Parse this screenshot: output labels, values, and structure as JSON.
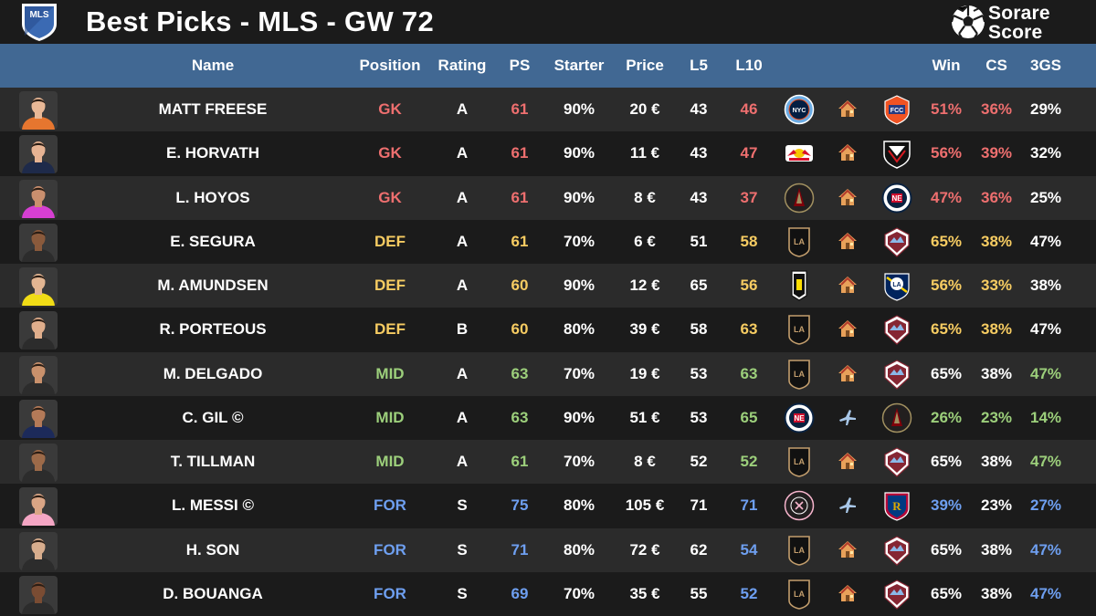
{
  "title": "Best Picks - MLS - GW 72",
  "brand": {
    "line1": "Sorare",
    "line2": "Score"
  },
  "mls_logo_text": "MLS",
  "columns": {
    "name": "Name",
    "position": "Position",
    "rating": "Rating",
    "ps": "PS",
    "starter": "Starter",
    "price": "Price",
    "l5": "L5",
    "l10": "L10",
    "win": "Win",
    "cs": "CS",
    "gs3": "3GS"
  },
  "colors": {
    "header": "#416893",
    "gk": "#ee6f6f",
    "def": "#f7cc62",
    "mid": "#9ccf7b",
    "for": "#6e9ff0"
  },
  "players": [
    {
      "name": "MATT FREESE",
      "position": "GK",
      "rating": "A",
      "ps": "61",
      "starter": "90%",
      "price": "20 €",
      "l5": "43",
      "l10": "46",
      "team": "nycfc-badge",
      "venue": "home-icon",
      "opponent": "cincinnati-badge",
      "win": "51%",
      "cs": "36%",
      "gs3": "29%",
      "kit": "#e6762f",
      "skin": "#e9b896"
    },
    {
      "name": "E. HORVATH",
      "position": "GK",
      "rating": "A",
      "ps": "61",
      "starter": "90%",
      "price": "11 €",
      "l5": "43",
      "l10": "47",
      "team": "red-bulls-badge",
      "venue": "home-icon",
      "opponent": "dc-united-badge",
      "win": "56%",
      "cs": "39%",
      "gs3": "32%",
      "kit": "#1e2a4a",
      "skin": "#e6b393"
    },
    {
      "name": "L. HOYOS",
      "position": "GK",
      "rating": "A",
      "ps": "61",
      "starter": "90%",
      "price": "8 €",
      "l5": "43",
      "l10": "37",
      "team": "atlanta-badge",
      "venue": "home-icon",
      "opponent": "new-england-badge",
      "win": "47%",
      "cs": "36%",
      "gs3": "25%",
      "kit": "#d63fd2",
      "skin": "#c98f6e"
    },
    {
      "name": "E. SEGURA",
      "position": "DEF",
      "rating": "A",
      "ps": "61",
      "starter": "70%",
      "price": "6 €",
      "l5": "51",
      "l10": "58",
      "team": "lafc-badge",
      "venue": "home-icon",
      "opponent": "colorado-badge",
      "win": "65%",
      "cs": "38%",
      "gs3": "47%",
      "kit": "#2c2c2c",
      "skin": "#8a5a3c"
    },
    {
      "name": "M. AMUNDSEN",
      "position": "DEF",
      "rating": "A",
      "ps": "60",
      "starter": "90%",
      "price": "12 €",
      "l5": "65",
      "l10": "56",
      "team": "columbus-badge",
      "venue": "home-icon",
      "opponent": "la-galaxy-badge",
      "win": "56%",
      "cs": "33%",
      "gs3": "38%",
      "kit": "#f1dc16",
      "skin": "#e2b592"
    },
    {
      "name": "R. PORTEOUS",
      "position": "DEF",
      "rating": "B",
      "ps": "60",
      "starter": "80%",
      "price": "39 €",
      "l5": "58",
      "l10": "63",
      "team": "lafc-badge",
      "venue": "home-icon",
      "opponent": "colorado-badge",
      "win": "65%",
      "cs": "38%",
      "gs3": "47%",
      "kit": "#2c2c2c",
      "skin": "#e0ae8c"
    },
    {
      "name": "M. DELGADO",
      "position": "MID",
      "rating": "A",
      "ps": "63",
      "starter": "70%",
      "price": "19 €",
      "l5": "53",
      "l10": "63",
      "team": "lafc-badge",
      "venue": "home-icon",
      "opponent": "colorado-badge",
      "win": "65%",
      "cs": "38%",
      "gs3": "47%",
      "kit": "#2c2c2c",
      "skin": "#c9916c"
    },
    {
      "name": "C. GIL ©",
      "position": "MID",
      "rating": "A",
      "ps": "63",
      "starter": "90%",
      "price": "51 €",
      "l5": "53",
      "l10": "65",
      "team": "new-england-badge",
      "venue": "plane-icon",
      "opponent": "atlanta-badge",
      "win": "26%",
      "cs": "23%",
      "gs3": "14%",
      "kit": "#1c2a5a",
      "skin": "#b47a58"
    },
    {
      "name": "T. TILLMAN",
      "position": "MID",
      "rating": "A",
      "ps": "61",
      "starter": "70%",
      "price": "8 €",
      "l5": "52",
      "l10": "52",
      "team": "lafc-badge",
      "venue": "home-icon",
      "opponent": "colorado-badge",
      "win": "65%",
      "cs": "38%",
      "gs3": "47%",
      "kit": "#2c2c2c",
      "skin": "#9c6a49"
    },
    {
      "name": "L. MESSI ©",
      "position": "FOR",
      "rating": "S",
      "ps": "75",
      "starter": "80%",
      "price": "105 €",
      "l5": "71",
      "l10": "71",
      "team": "inter-miami-badge",
      "venue": "plane-icon",
      "opponent": "real-salt-lake-badge",
      "win": "39%",
      "cs": "23%",
      "gs3": "27%",
      "kit": "#f4a6c4",
      "skin": "#d9a585"
    },
    {
      "name": "H. SON",
      "position": "FOR",
      "rating": "S",
      "ps": "71",
      "starter": "80%",
      "price": "72 €",
      "l5": "62",
      "l10": "54",
      "team": "lafc-badge",
      "venue": "home-icon",
      "opponent": "colorado-badge",
      "win": "65%",
      "cs": "38%",
      "gs3": "47%",
      "kit": "#2c2c2c",
      "skin": "#d8ad8d"
    },
    {
      "name": "D. BOUANGA",
      "position": "FOR",
      "rating": "S",
      "ps": "69",
      "starter": "70%",
      "price": "35 €",
      "l5": "55",
      "l10": "52",
      "team": "lafc-badge",
      "venue": "home-icon",
      "opponent": "colorado-badge",
      "win": "65%",
      "cs": "38%",
      "gs3": "47%",
      "kit": "#2c2c2c",
      "skin": "#7a4c33"
    }
  ]
}
